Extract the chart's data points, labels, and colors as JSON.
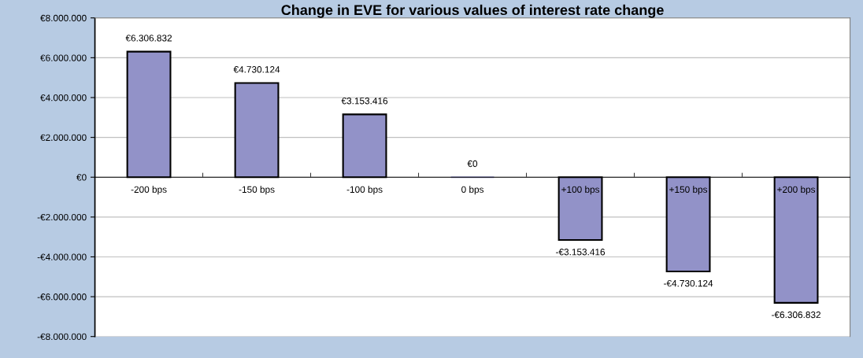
{
  "chart_data": {
    "type": "bar",
    "title": "Change in EVE for various values of interest rate change",
    "categories": [
      "-200 bps",
      "-150 bps",
      "-100 bps",
      "0 bps",
      "+100 bps",
      "+150 bps",
      "+200 bps"
    ],
    "values": [
      6306832,
      4730124,
      3153416,
      0,
      -3153416,
      -4730124,
      -6306832
    ],
    "value_labels": [
      "€6.306.832",
      "€4.730.124",
      "€3.153.416",
      "€0",
      "-€3.153.416",
      "-€4.730.124",
      "-€6.306.832"
    ],
    "color": "#9292c8",
    "ylim": [
      -8000000,
      8000000
    ],
    "yticks": [
      {
        "value": -8000000,
        "label": "-€8.000.000"
      },
      {
        "value": -6000000,
        "label": "-€6.000.000"
      },
      {
        "value": -4000000,
        "label": "-€4.000.000"
      },
      {
        "value": -2000000,
        "label": "-€2.000.000"
      },
      {
        "value": 0,
        "label": "€0"
      },
      {
        "value": 2000000,
        "label": "€2.000.000"
      },
      {
        "value": 4000000,
        "label": "€4.000.000"
      },
      {
        "value": 6000000,
        "label": "€6.000.000"
      },
      {
        "value": 8000000,
        "label": "€8.000.000"
      }
    ],
    "grid": "y",
    "legend": false
  }
}
